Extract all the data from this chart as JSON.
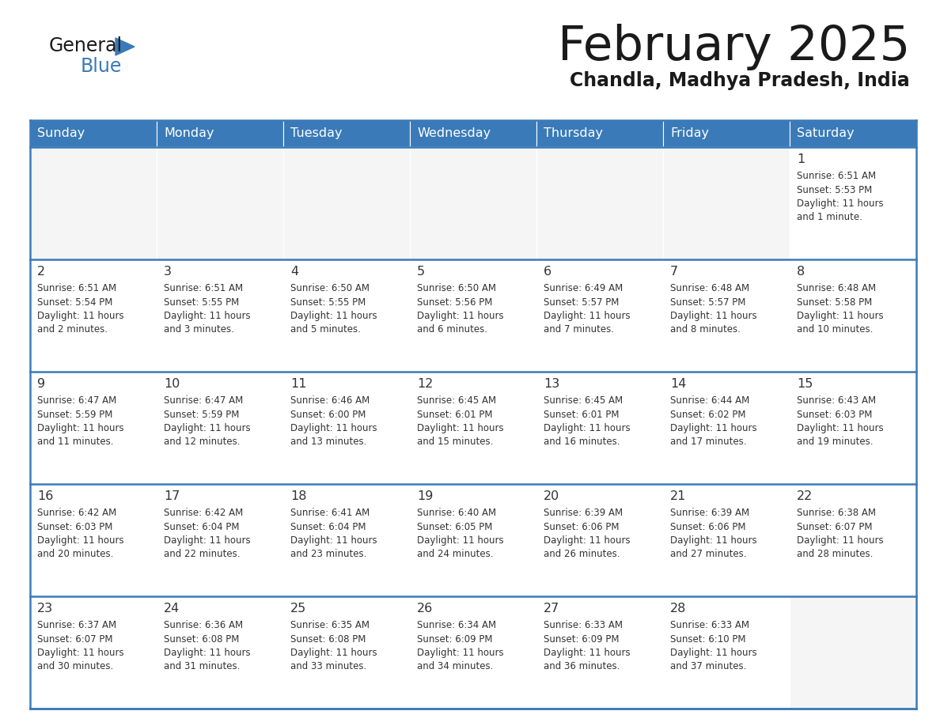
{
  "title": "February 2025",
  "subtitle": "Chandla, Madhya Pradesh, India",
  "header_color": "#3a7ab8",
  "header_text_color": "#ffffff",
  "cell_bg_odd": "#f2f2f2",
  "cell_bg_even": "#ffffff",
  "cell_bg_empty": "#f2f2f2",
  "border_color": "#3a7ab8",
  "text_color": "#333333",
  "days_of_week": [
    "Sunday",
    "Monday",
    "Tuesday",
    "Wednesday",
    "Thursday",
    "Friday",
    "Saturday"
  ],
  "calendar_data": [
    [
      null,
      null,
      null,
      null,
      null,
      null,
      {
        "day": 1,
        "sunrise": "6:51 AM",
        "sunset": "5:53 PM",
        "daylight": "11 hours and 1 minute."
      }
    ],
    [
      {
        "day": 2,
        "sunrise": "6:51 AM",
        "sunset": "5:54 PM",
        "daylight": "11 hours and 2 minutes."
      },
      {
        "day": 3,
        "sunrise": "6:51 AM",
        "sunset": "5:55 PM",
        "daylight": "11 hours and 3 minutes."
      },
      {
        "day": 4,
        "sunrise": "6:50 AM",
        "sunset": "5:55 PM",
        "daylight": "11 hours and 5 minutes."
      },
      {
        "day": 5,
        "sunrise": "6:50 AM",
        "sunset": "5:56 PM",
        "daylight": "11 hours and 6 minutes."
      },
      {
        "day": 6,
        "sunrise": "6:49 AM",
        "sunset": "5:57 PM",
        "daylight": "11 hours and 7 minutes."
      },
      {
        "day": 7,
        "sunrise": "6:48 AM",
        "sunset": "5:57 PM",
        "daylight": "11 hours and 8 minutes."
      },
      {
        "day": 8,
        "sunrise": "6:48 AM",
        "sunset": "5:58 PM",
        "daylight": "11 hours and 10 minutes."
      }
    ],
    [
      {
        "day": 9,
        "sunrise": "6:47 AM",
        "sunset": "5:59 PM",
        "daylight": "11 hours and 11 minutes."
      },
      {
        "day": 10,
        "sunrise": "6:47 AM",
        "sunset": "5:59 PM",
        "daylight": "11 hours and 12 minutes."
      },
      {
        "day": 11,
        "sunrise": "6:46 AM",
        "sunset": "6:00 PM",
        "daylight": "11 hours and 13 minutes."
      },
      {
        "day": 12,
        "sunrise": "6:45 AM",
        "sunset": "6:01 PM",
        "daylight": "11 hours and 15 minutes."
      },
      {
        "day": 13,
        "sunrise": "6:45 AM",
        "sunset": "6:01 PM",
        "daylight": "11 hours and 16 minutes."
      },
      {
        "day": 14,
        "sunrise": "6:44 AM",
        "sunset": "6:02 PM",
        "daylight": "11 hours and 17 minutes."
      },
      {
        "day": 15,
        "sunrise": "6:43 AM",
        "sunset": "6:03 PM",
        "daylight": "11 hours and 19 minutes."
      }
    ],
    [
      {
        "day": 16,
        "sunrise": "6:42 AM",
        "sunset": "6:03 PM",
        "daylight": "11 hours and 20 minutes."
      },
      {
        "day": 17,
        "sunrise": "6:42 AM",
        "sunset": "6:04 PM",
        "daylight": "11 hours and 22 minutes."
      },
      {
        "day": 18,
        "sunrise": "6:41 AM",
        "sunset": "6:04 PM",
        "daylight": "11 hours and 23 minutes."
      },
      {
        "day": 19,
        "sunrise": "6:40 AM",
        "sunset": "6:05 PM",
        "daylight": "11 hours and 24 minutes."
      },
      {
        "day": 20,
        "sunrise": "6:39 AM",
        "sunset": "6:06 PM",
        "daylight": "11 hours and 26 minutes."
      },
      {
        "day": 21,
        "sunrise": "6:39 AM",
        "sunset": "6:06 PM",
        "daylight": "11 hours and 27 minutes."
      },
      {
        "day": 22,
        "sunrise": "6:38 AM",
        "sunset": "6:07 PM",
        "daylight": "11 hours and 28 minutes."
      }
    ],
    [
      {
        "day": 23,
        "sunrise": "6:37 AM",
        "sunset": "6:07 PM",
        "daylight": "11 hours and 30 minutes."
      },
      {
        "day": 24,
        "sunrise": "6:36 AM",
        "sunset": "6:08 PM",
        "daylight": "11 hours and 31 minutes."
      },
      {
        "day": 25,
        "sunrise": "6:35 AM",
        "sunset": "6:08 PM",
        "daylight": "11 hours and 33 minutes."
      },
      {
        "day": 26,
        "sunrise": "6:34 AM",
        "sunset": "6:09 PM",
        "daylight": "11 hours and 34 minutes."
      },
      {
        "day": 27,
        "sunrise": "6:33 AM",
        "sunset": "6:09 PM",
        "daylight": "11 hours and 36 minutes."
      },
      {
        "day": 28,
        "sunrise": "6:33 AM",
        "sunset": "6:10 PM",
        "daylight": "11 hours and 37 minutes."
      },
      null
    ]
  ],
  "num_rows": 5,
  "num_cols": 7
}
